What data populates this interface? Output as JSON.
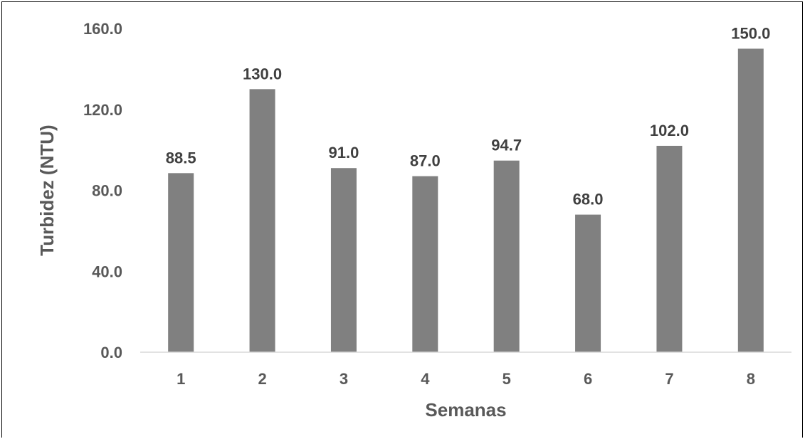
{
  "chart_data": {
    "type": "bar",
    "categories": [
      "1",
      "2",
      "3",
      "4",
      "5",
      "6",
      "7",
      "8"
    ],
    "values": [
      88.5,
      130.0,
      91.0,
      87.0,
      94.7,
      68.0,
      102.0,
      150.0
    ],
    "value_labels": [
      "88.5",
      "130.0",
      "91.0",
      "87.0",
      "94.7",
      "68.0",
      "102.0",
      "150.0"
    ],
    "title": "",
    "xlabel": "Semanas",
    "ylabel": "Turbidez (NTU)",
    "ylim": [
      0,
      160
    ],
    "yticks": [
      0,
      40,
      80,
      120,
      160
    ],
    "ytick_labels": [
      "0.0",
      "40.0",
      "80.0",
      "120.0",
      "160.0"
    ],
    "grid": false,
    "legend": "none",
    "bar_color": "#808080"
  }
}
